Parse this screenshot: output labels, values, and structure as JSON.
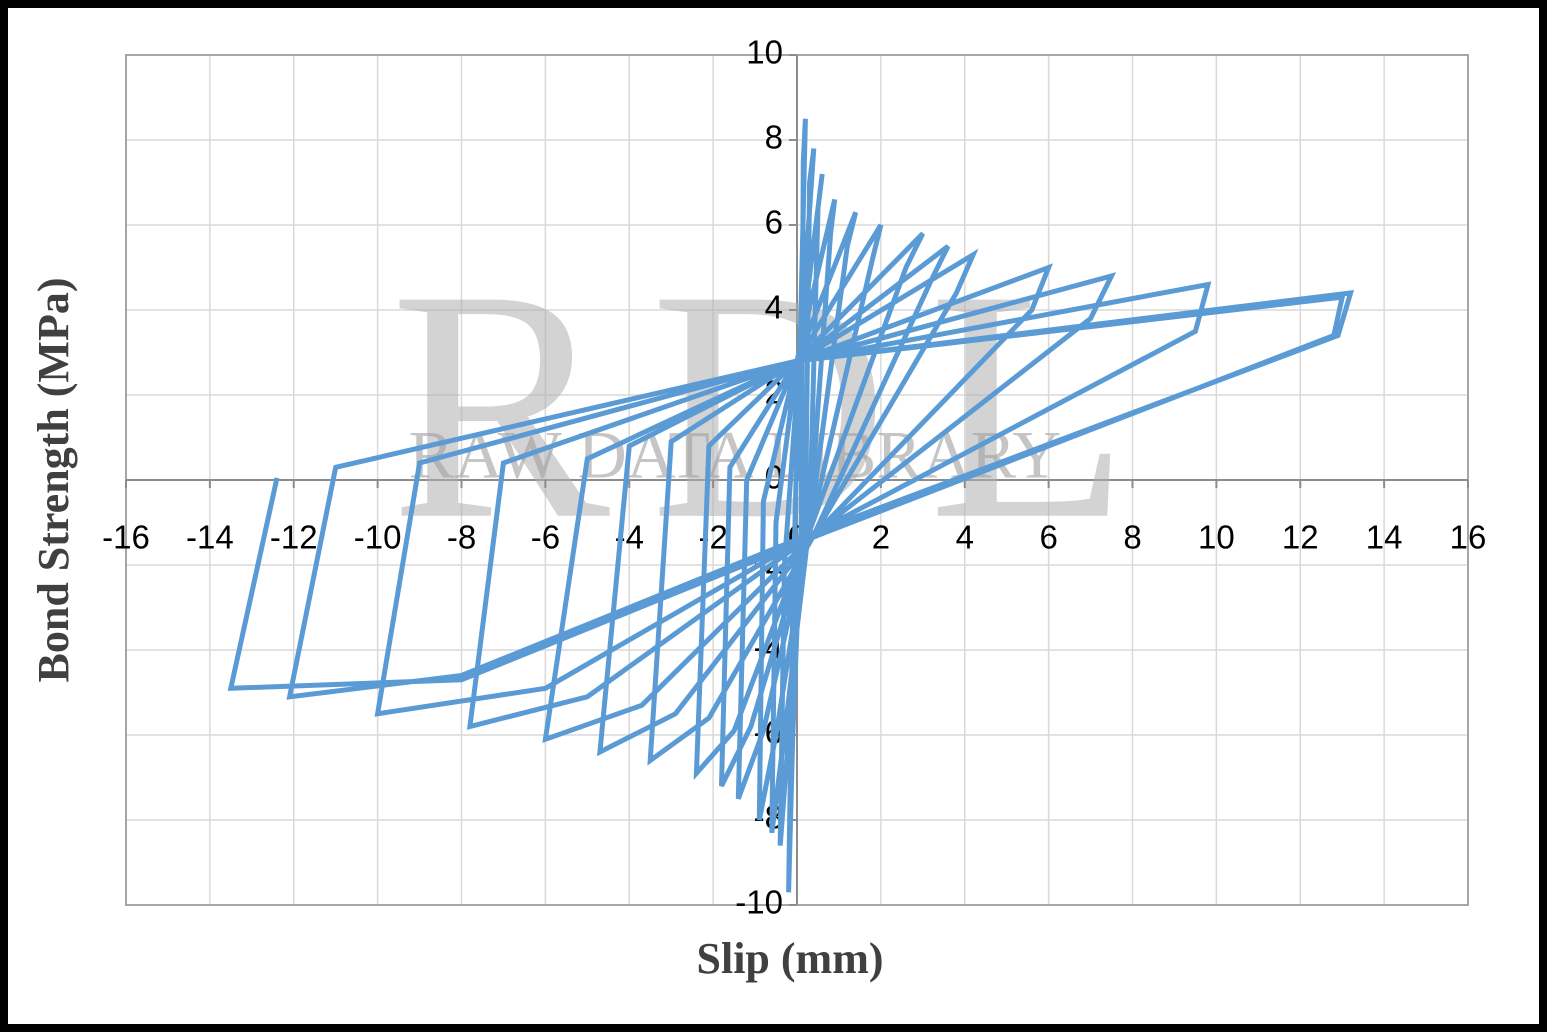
{
  "chart_data": {
    "type": "line",
    "x_label": "Slip (mm)",
    "y_label": "Bond Strength (MPa)",
    "watermark": "RDL",
    "watermark_subtitle": "RAW DATA LIBRARY",
    "xlim": [
      -16,
      16
    ],
    "ylim": [
      -10,
      10
    ],
    "xticks": [
      -16,
      -14,
      -12,
      -10,
      -8,
      -6,
      -4,
      -2,
      0,
      2,
      4,
      6,
      8,
      10,
      12,
      14,
      16
    ],
    "yticks": [
      -10,
      -8,
      -6,
      -4,
      -2,
      0,
      2,
      4,
      6,
      8,
      10
    ],
    "grid": true,
    "x": [
      0,
      0.2,
      0.15,
      0.1,
      -0.1,
      -0.2,
      -0.1,
      0.05,
      0.4,
      0.3,
      0.2,
      -0.2,
      -0.4,
      -0.3,
      0.05,
      0.6,
      0.5,
      0.3,
      -0.3,
      -0.6,
      -0.5,
      0,
      0.9,
      0.8,
      0.3,
      -0.5,
      -0.9,
      -0.8,
      0,
      1.4,
      1.2,
      0.3,
      -0.8,
      -1.4,
      -1.2,
      0,
      2.0,
      1.8,
      0.3,
      -1.1,
      -1.8,
      -1.6,
      0,
      3.0,
      2.6,
      0.3,
      -1.5,
      -2.4,
      -2.1,
      0,
      3.6,
      3.2,
      0.4,
      -2.1,
      -3.5,
      -3.0,
      0,
      4.2,
      3.8,
      0.4,
      -2.9,
      -4.7,
      -4.0,
      0,
      6.0,
      5.6,
      0.5,
      -3.7,
      -6.0,
      -5.0,
      0,
      7.5,
      7.0,
      0.5,
      -5.0,
      -7.8,
      -7.0,
      0,
      9.8,
      9.5,
      0.5,
      -6.0,
      -10.0,
      -9.0,
      0,
      13.2,
      12.9,
      0.5,
      -8.0,
      -12.1,
      -11.0,
      0,
      13.0,
      12.8,
      0.5,
      -8.0,
      -13.5,
      -12.4
    ],
    "series": [
      {
        "color": "#5b9bd5",
        "values": [
          0,
          8.5,
          7.5,
          -1,
          -6,
          -9.7,
          -3,
          2.8,
          7.8,
          7.0,
          -1,
          -6,
          -8.6,
          -2,
          2.8,
          7.2,
          6.4,
          -1,
          -6,
          -8.3,
          -1,
          2.8,
          6.6,
          5.8,
          -1,
          -6,
          -8.0,
          -0.5,
          2.8,
          6.3,
          5.5,
          -1.1,
          -5.9,
          -7.5,
          0,
          2.8,
          6.0,
          5.2,
          -1.2,
          -5.8,
          -7.2,
          0.3,
          2.8,
          5.8,
          5.0,
          -1.2,
          -5.9,
          -6.9,
          0.8,
          2.8,
          5.5,
          4.7,
          -1.3,
          -5.6,
          -6.6,
          0.9,
          2.8,
          5.3,
          4.4,
          -1.3,
          -5.5,
          -6.4,
          0.8,
          2.8,
          5.0,
          4.0,
          -1.2,
          -5.3,
          -6.1,
          0.5,
          2.8,
          4.8,
          3.8,
          -1.2,
          -5.1,
          -5.8,
          0.4,
          2.8,
          4.6,
          3.5,
          -1.2,
          -4.9,
          -5.5,
          0.4,
          2.8,
          4.4,
          3.4,
          -1.2,
          -4.6,
          -5.1,
          0.3,
          2.8,
          4.3,
          3.4,
          -1.3,
          -4.7,
          -4.9,
          0.05
        ]
      }
    ]
  }
}
